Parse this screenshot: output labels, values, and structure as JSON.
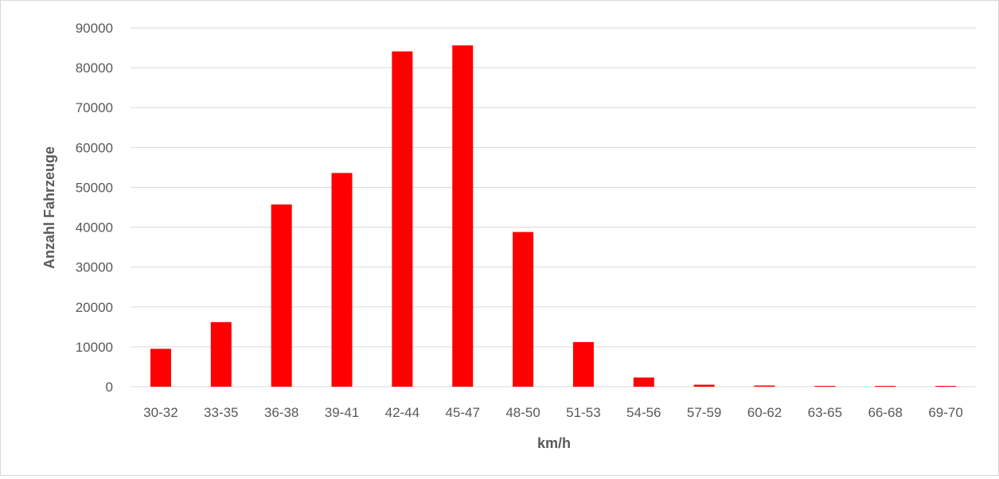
{
  "chart_data": {
    "type": "bar",
    "title": "",
    "xlabel": "km/h",
    "ylabel": "Anzahl Fahrzeuge",
    "categories": [
      "30-32",
      "33-35",
      "36-38",
      "39-41",
      "42-44",
      "45-47",
      "48-50",
      "51-53",
      "54-56",
      "57-59",
      "60-62",
      "63-65",
      "66-68",
      "69-70"
    ],
    "values": [
      9500,
      16200,
      45700,
      53600,
      84100,
      85600,
      38800,
      11200,
      2300,
      500,
      300,
      200,
      200,
      200
    ],
    "ylim": [
      0,
      90000
    ],
    "yticks": [
      "0",
      "10000",
      "20000",
      "30000",
      "40000",
      "50000",
      "60000",
      "70000",
      "80000",
      "90000"
    ],
    "grid": true,
    "legend": "none",
    "bar_color": "#ff0000"
  }
}
